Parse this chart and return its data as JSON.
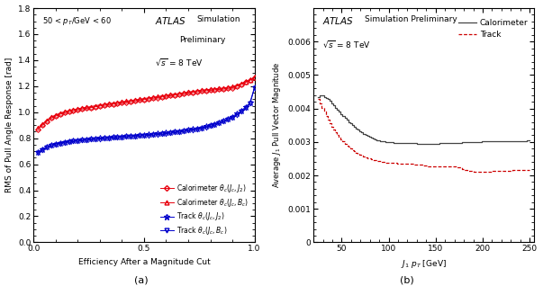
{
  "fig_width": 6.03,
  "fig_height": 3.18,
  "panel_a": {
    "xlabel": "Efficiency After a Magnitude Cut",
    "ylabel": "RMS of Pull Angle Response [rad]",
    "xlim": [
      0,
      1.0
    ],
    "ylim": [
      0,
      1.8
    ],
    "yticks": [
      0,
      0.2,
      0.4,
      0.6,
      0.8,
      1.0,
      1.2,
      1.4,
      1.6,
      1.8
    ],
    "xticks": [
      0,
      0.5,
      1.0
    ],
    "series": {
      "cal_jj": {
        "color": "#e8000d",
        "x": [
          0.02,
          0.04,
          0.06,
          0.08,
          0.1,
          0.12,
          0.14,
          0.16,
          0.18,
          0.2,
          0.22,
          0.24,
          0.26,
          0.28,
          0.3,
          0.32,
          0.34,
          0.36,
          0.38,
          0.4,
          0.42,
          0.44,
          0.46,
          0.48,
          0.5,
          0.52,
          0.54,
          0.56,
          0.58,
          0.6,
          0.62,
          0.64,
          0.66,
          0.68,
          0.7,
          0.72,
          0.74,
          0.76,
          0.78,
          0.8,
          0.82,
          0.84,
          0.86,
          0.88,
          0.9,
          0.92,
          0.94,
          0.96,
          0.98,
          1.0
        ],
        "y": [
          0.87,
          0.9,
          0.93,
          0.955,
          0.97,
          0.985,
          0.995,
          1.005,
          1.012,
          1.018,
          1.025,
          1.03,
          1.035,
          1.042,
          1.048,
          1.053,
          1.058,
          1.062,
          1.067,
          1.072,
          1.077,
          1.082,
          1.087,
          1.092,
          1.097,
          1.102,
          1.107,
          1.112,
          1.117,
          1.122,
          1.127,
          1.132,
          1.137,
          1.142,
          1.147,
          1.152,
          1.157,
          1.162,
          1.165,
          1.168,
          1.172,
          1.175,
          1.178,
          1.183,
          1.188,
          1.2,
          1.215,
          1.23,
          1.245,
          1.27
        ]
      },
      "cal_jb": {
        "color": "#e8000d",
        "x": [
          0.02,
          0.04,
          0.06,
          0.08,
          0.1,
          0.12,
          0.14,
          0.16,
          0.18,
          0.2,
          0.22,
          0.24,
          0.26,
          0.28,
          0.3,
          0.32,
          0.34,
          0.36,
          0.38,
          0.4,
          0.42,
          0.44,
          0.46,
          0.48,
          0.5,
          0.52,
          0.54,
          0.56,
          0.58,
          0.6,
          0.62,
          0.64,
          0.66,
          0.68,
          0.7,
          0.72,
          0.74,
          0.76,
          0.78,
          0.8,
          0.82,
          0.84,
          0.86,
          0.88,
          0.9,
          0.92,
          0.94,
          0.96,
          0.98,
          1.0
        ],
        "y": [
          0.878,
          0.908,
          0.938,
          0.963,
          0.978,
          0.993,
          1.003,
          1.013,
          1.02,
          1.026,
          1.033,
          1.038,
          1.043,
          1.05,
          1.056,
          1.061,
          1.066,
          1.07,
          1.075,
          1.08,
          1.085,
          1.09,
          1.095,
          1.1,
          1.105,
          1.11,
          1.115,
          1.12,
          1.125,
          1.13,
          1.135,
          1.14,
          1.145,
          1.15,
          1.155,
          1.16,
          1.165,
          1.17,
          1.173,
          1.176,
          1.18,
          1.183,
          1.186,
          1.191,
          1.196,
          1.208,
          1.22,
          1.235,
          1.248,
          1.265
        ]
      },
      "trk_jj": {
        "color": "#0000cc",
        "x": [
          0.02,
          0.04,
          0.06,
          0.08,
          0.1,
          0.12,
          0.14,
          0.16,
          0.18,
          0.2,
          0.22,
          0.24,
          0.26,
          0.28,
          0.3,
          0.32,
          0.34,
          0.36,
          0.38,
          0.4,
          0.42,
          0.44,
          0.46,
          0.48,
          0.5,
          0.52,
          0.54,
          0.56,
          0.58,
          0.6,
          0.62,
          0.64,
          0.66,
          0.68,
          0.7,
          0.72,
          0.74,
          0.76,
          0.78,
          0.8,
          0.82,
          0.84,
          0.86,
          0.88,
          0.9,
          0.92,
          0.94,
          0.96,
          0.98,
          1.0
        ],
        "y": [
          0.695,
          0.718,
          0.735,
          0.748,
          0.758,
          0.766,
          0.773,
          0.778,
          0.782,
          0.786,
          0.789,
          0.793,
          0.796,
          0.799,
          0.802,
          0.805,
          0.807,
          0.81,
          0.812,
          0.815,
          0.817,
          0.82,
          0.822,
          0.825,
          0.827,
          0.83,
          0.833,
          0.836,
          0.839,
          0.843,
          0.847,
          0.851,
          0.855,
          0.86,
          0.865,
          0.871,
          0.877,
          0.884,
          0.892,
          0.901,
          0.911,
          0.922,
          0.935,
          0.95,
          0.967,
          0.988,
          1.01,
          1.04,
          1.075,
          1.19
        ]
      },
      "trk_jb": {
        "color": "#0000cc",
        "x": [
          0.02,
          0.04,
          0.06,
          0.08,
          0.1,
          0.12,
          0.14,
          0.16,
          0.18,
          0.2,
          0.22,
          0.24,
          0.26,
          0.28,
          0.3,
          0.32,
          0.34,
          0.36,
          0.38,
          0.4,
          0.42,
          0.44,
          0.46,
          0.48,
          0.5,
          0.52,
          0.54,
          0.56,
          0.58,
          0.6,
          0.62,
          0.64,
          0.66,
          0.68,
          0.7,
          0.72,
          0.74,
          0.76,
          0.78,
          0.8,
          0.82,
          0.84,
          0.86,
          0.88,
          0.9,
          0.92,
          0.94,
          0.96,
          0.98,
          1.0
        ],
        "y": [
          0.688,
          0.71,
          0.727,
          0.74,
          0.75,
          0.758,
          0.765,
          0.77,
          0.774,
          0.778,
          0.781,
          0.785,
          0.788,
          0.791,
          0.794,
          0.797,
          0.799,
          0.802,
          0.804,
          0.807,
          0.809,
          0.812,
          0.814,
          0.817,
          0.819,
          0.822,
          0.825,
          0.828,
          0.831,
          0.835,
          0.839,
          0.843,
          0.847,
          0.852,
          0.857,
          0.863,
          0.869,
          0.876,
          0.884,
          0.893,
          0.903,
          0.914,
          0.927,
          0.942,
          0.959,
          0.98,
          1.002,
          1.032,
          1.067,
          1.185
        ]
      }
    }
  },
  "panel_b": {
    "xlabel": "J$_1$ p$_T$ [GeV]",
    "ylabel": "Average J$_1$ Pull Vector Magnitude",
    "xlim": [
      20,
      255
    ],
    "ylim": [
      0,
      0.007
    ],
    "yticks": [
      0,
      0.001,
      0.002,
      0.003,
      0.004,
      0.005,
      0.006
    ],
    "xticks": [
      50,
      100,
      150,
      200,
      250
    ],
    "series": {
      "calorimeter": {
        "color": "#444444",
        "x": [
          25,
          27,
          29,
          31,
          33,
          35,
          37,
          39,
          41,
          43,
          45,
          47,
          49,
          51,
          53,
          55,
          57,
          59,
          61,
          63,
          65,
          67,
          69,
          71,
          73,
          75,
          77,
          79,
          81,
          83,
          85,
          87,
          89,
          91,
          93,
          95,
          97,
          99,
          101,
          103,
          105,
          107,
          109,
          111,
          113,
          115,
          117,
          119,
          121,
          123,
          125,
          127,
          130,
          133,
          136,
          139,
          142,
          145,
          148,
          151,
          154,
          157,
          160,
          163,
          166,
          169,
          172,
          175,
          178,
          181,
          184,
          187,
          190,
          193,
          196,
          199,
          202,
          205,
          208,
          211,
          214,
          217,
          220,
          223,
          226,
          229,
          232,
          235,
          238,
          241,
          244,
          247,
          250
        ],
        "y": [
          0.00435,
          0.0044,
          0.00438,
          0.00435,
          0.00432,
          0.00428,
          0.00422,
          0.00416,
          0.0041,
          0.00403,
          0.00397,
          0.0039,
          0.00384,
          0.00378,
          0.00372,
          0.00366,
          0.0036,
          0.00355,
          0.0035,
          0.00345,
          0.0034,
          0.00336,
          0.00332,
          0.00328,
          0.00325,
          0.00321,
          0.00318,
          0.00315,
          0.00312,
          0.0031,
          0.00308,
          0.00306,
          0.00304,
          0.00303,
          0.00302,
          0.00301,
          0.003,
          0.003,
          0.00299,
          0.00299,
          0.00298,
          0.00298,
          0.00298,
          0.00298,
          0.00297,
          0.00297,
          0.00297,
          0.00296,
          0.00296,
          0.00296,
          0.00296,
          0.00296,
          0.00295,
          0.00295,
          0.00295,
          0.00295,
          0.00295,
          0.00295,
          0.00295,
          0.00295,
          0.00296,
          0.00296,
          0.00297,
          0.00297,
          0.00297,
          0.00298,
          0.00298,
          0.00298,
          0.00299,
          0.00299,
          0.00299,
          0.003,
          0.003,
          0.003,
          0.003,
          0.00301,
          0.00301,
          0.00301,
          0.00301,
          0.00302,
          0.00302,
          0.00302,
          0.00302,
          0.00303,
          0.00303,
          0.00303,
          0.00303,
          0.00303,
          0.00303,
          0.00303,
          0.00303,
          0.00304,
          0.00304
        ]
      },
      "track": {
        "color": "#cc0000",
        "x": [
          25,
          27,
          29,
          31,
          33,
          35,
          37,
          39,
          41,
          43,
          45,
          47,
          49,
          51,
          53,
          55,
          57,
          59,
          61,
          63,
          65,
          67,
          69,
          71,
          73,
          75,
          77,
          79,
          81,
          83,
          85,
          87,
          89,
          91,
          93,
          95,
          97,
          99,
          101,
          103,
          105,
          107,
          109,
          111,
          113,
          115,
          117,
          119,
          121,
          123,
          125,
          127,
          130,
          133,
          136,
          139,
          142,
          145,
          148,
          151,
          154,
          157,
          160,
          163,
          166,
          169,
          172,
          175,
          178,
          181,
          184,
          187,
          190,
          193,
          196,
          199,
          202,
          205,
          208,
          211,
          214,
          217,
          220,
          223,
          226,
          229,
          232,
          235,
          238,
          241,
          244,
          247,
          250
        ],
        "y": [
          0.00428,
          0.00415,
          0.00402,
          0.0039,
          0.00378,
          0.00367,
          0.00356,
          0.00346,
          0.00337,
          0.00329,
          0.00321,
          0.00314,
          0.00307,
          0.00301,
          0.00295,
          0.0029,
          0.00285,
          0.0028,
          0.00276,
          0.00272,
          0.00268,
          0.00265,
          0.00262,
          0.00259,
          0.00256,
          0.00254,
          0.00252,
          0.0025,
          0.00248,
          0.00247,
          0.00245,
          0.00244,
          0.00243,
          0.00242,
          0.00241,
          0.0024,
          0.00239,
          0.00239,
          0.00238,
          0.00238,
          0.00237,
          0.00237,
          0.00236,
          0.00236,
          0.00236,
          0.00235,
          0.00235,
          0.00235,
          0.00234,
          0.00234,
          0.00234,
          0.00233,
          0.00232,
          0.00231,
          0.0023,
          0.00229,
          0.00228,
          0.00228,
          0.00228,
          0.00227,
          0.00227,
          0.00227,
          0.00227,
          0.00226,
          0.00226,
          0.00226,
          0.00225,
          0.00225,
          0.0022,
          0.00216,
          0.00214,
          0.00213,
          0.00212,
          0.00212,
          0.00212,
          0.00212,
          0.00212,
          0.00212,
          0.00212,
          0.00213,
          0.00213,
          0.00213,
          0.00213,
          0.00214,
          0.00214,
          0.00214,
          0.00215,
          0.00215,
          0.00215,
          0.00216,
          0.00216,
          0.00216,
          0.00216
        ]
      }
    }
  }
}
